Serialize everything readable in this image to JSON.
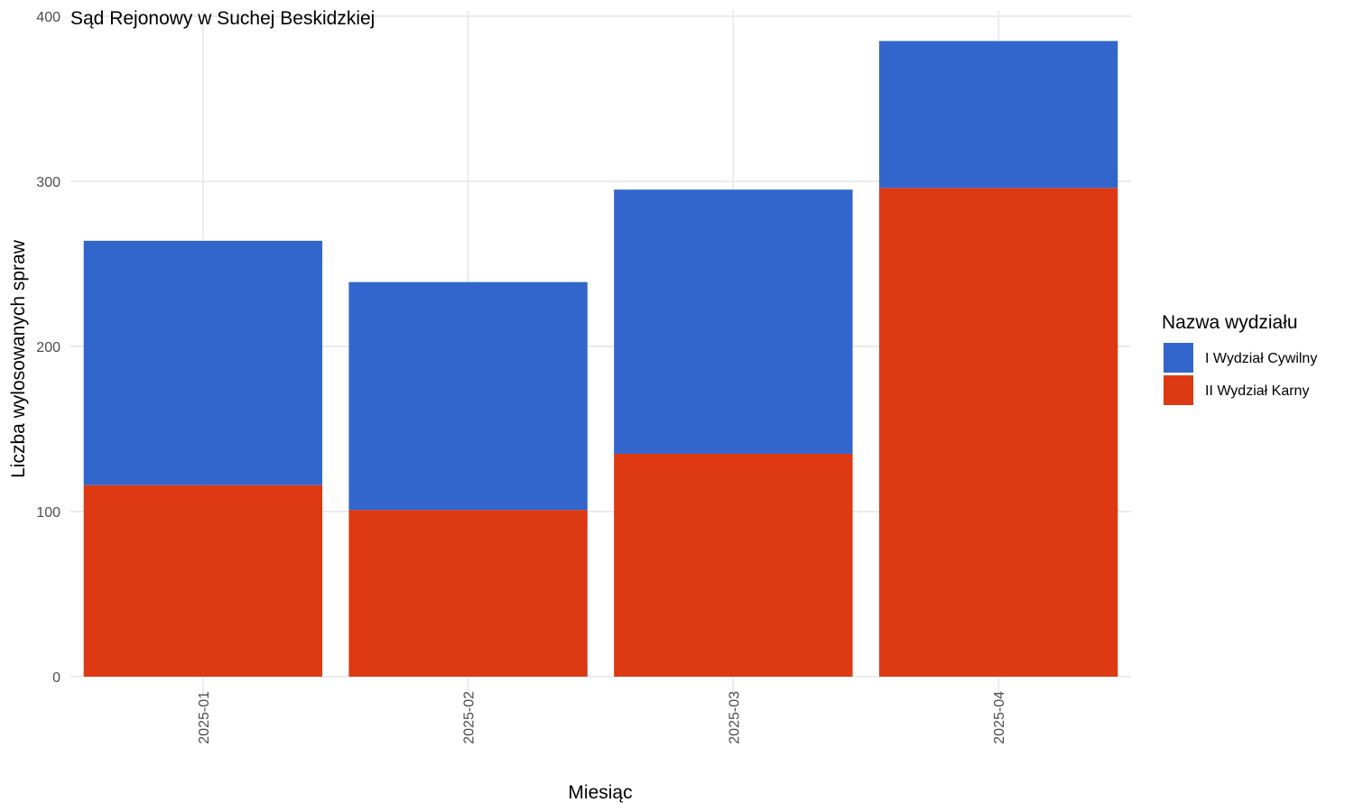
{
  "chart_data": {
    "type": "bar",
    "stacked": true,
    "title": "Sąd Rejonowy w Suchej Beskidzkiej",
    "xlabel": "Miesiąc",
    "ylabel": "Liczba wylosowanych spraw",
    "categories": [
      "2025-01",
      "2025-02",
      "2025-03",
      "2025-04"
    ],
    "ylim": [
      0,
      400
    ],
    "yticks": [
      0,
      100,
      200,
      300,
      400
    ],
    "grid": true,
    "legend": {
      "title": "Nazwa wydziału",
      "position": "right"
    },
    "series": [
      {
        "name": "II Wydział Karny",
        "color": "#DD3913",
        "values": [
          116,
          101,
          135,
          296
        ]
      },
      {
        "name": "I Wydział Cywilny",
        "color": "#3366CC",
        "values": [
          148,
          138,
          160,
          89
        ]
      }
    ],
    "legend_order": [
      "I Wydział Cywilny",
      "II Wydział Karny"
    ]
  }
}
